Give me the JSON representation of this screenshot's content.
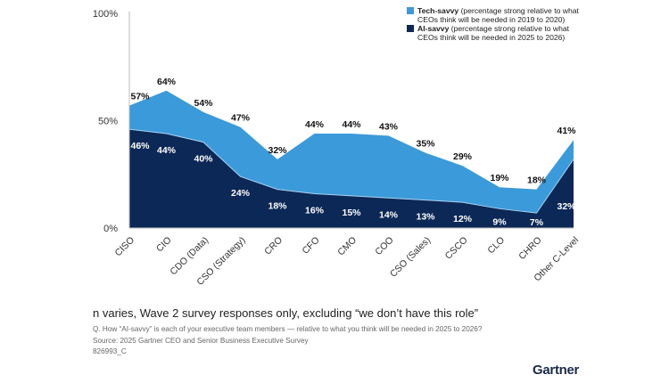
{
  "chart_data": {
    "type": "area",
    "title": "",
    "categories": [
      "CISO",
      "CIO",
      "CDO (Data)",
      "CSO (Strategy)",
      "CRO",
      "CFO",
      "CMO",
      "COO",
      "CSO (Sales)",
      "CSCO",
      "CLO",
      "CHRO",
      "Other C-Level"
    ],
    "series": [
      {
        "name": "Tech-savvy",
        "description": "(percentage strong relative to what CEOs think will be needed in 2019 to 2020)",
        "color": "#3b9ad9",
        "values": [
          57,
          64,
          54,
          47,
          32,
          44,
          44,
          43,
          35,
          29,
          19,
          18,
          41
        ],
        "labels": [
          "57%",
          "64%",
          "54%",
          "47%",
          "32%",
          "44%",
          "44%",
          "43%",
          "35%",
          "29%",
          "19%",
          "18%",
          "41%"
        ]
      },
      {
        "name": "AI-savvy",
        "description": "(percentage strong relative to what CEOs think will be needed in 2025 to 2026)",
        "color": "#0c2856",
        "values": [
          46,
          44,
          40,
          24,
          18,
          16,
          15,
          14,
          13,
          12,
          9,
          7,
          32
        ],
        "labels": [
          "46%",
          "44%",
          "40%",
          "24%",
          "18%",
          "16%",
          "15%",
          "14%",
          "13%",
          "12%",
          "9%",
          "7%",
          "32%"
        ]
      }
    ],
    "yticks": [
      "0%",
      "50%",
      "100%"
    ],
    "ylim": [
      0,
      100
    ],
    "legend": "top-right",
    "grid": false
  },
  "legend": {
    "tech_name": "Tech-savvy",
    "tech_desc1": " (percentage strong relative to what",
    "tech_desc2": "CEOs think will be needed in 2019 to 2020)",
    "ai_name": "AI-savvy",
    "ai_desc1": " (percentage strong relative to what",
    "ai_desc2": "CEOs think will be needed in 2025 to 2026)"
  },
  "footnote": "n varies, Wave 2 survey responses only, excluding “we don’t have this role”",
  "question": "Q. How “AI-savvy” is each of your executive team members — relative to what you think will be needed in 2025 to 2026?",
  "source": "Source: 2025 Gartner CEO and Senior Business Executive Survey",
  "id": "826993_C",
  "logo": "Gartner"
}
